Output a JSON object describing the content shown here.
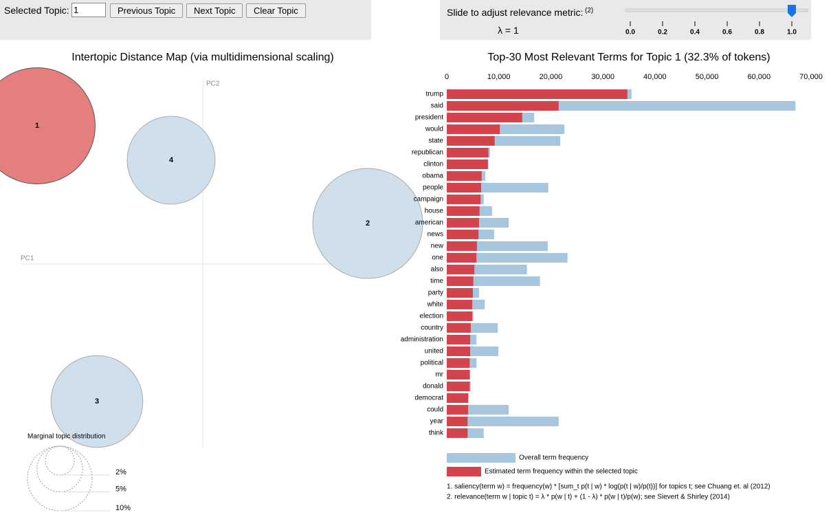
{
  "controls": {
    "selected_label": "Selected Topic:",
    "selected_value": "1",
    "buttons": [
      "Previous Topic",
      "Next Topic",
      "Clear Topic"
    ],
    "slider_label": "Slide to adjust relevance metric:",
    "slider_note": "(2)",
    "lambda_label": "λ = 1",
    "slider_value": 1,
    "slider_lim": [
      0,
      1
    ],
    "slider_ticks": [
      {
        "value": 0,
        "label": "0.0"
      },
      {
        "value": 0.2,
        "label": "0.2"
      },
      {
        "value": 0.4,
        "label": "0.4"
      },
      {
        "value": 0.6,
        "label": "0.6"
      },
      {
        "value": 0.8,
        "label": "0.8"
      },
      {
        "value": 1,
        "label": "1.0"
      }
    ]
  },
  "chart_data": [
    {
      "type": "bubble",
      "title": "Intertopic Distance Map (via multidimensional scaling)",
      "xlabel": "PC1",
      "ylabel": "PC2",
      "xlim": [
        -0.295,
        0.265
      ],
      "ylim": [
        -0.266,
        0.284
      ],
      "labels": [
        "1",
        "2",
        "3",
        "4"
      ],
      "x": [
        -0.241,
        0.24,
        -0.154,
        -0.046
      ],
      "y": [
        0.201,
        0.059,
        -0.2,
        0.151
      ],
      "sizes": [
        32.3,
        29,
        20.2,
        18.5
      ],
      "colors": [
        "#e47f7d",
        "#cfe0ec",
        "#cfe0ec",
        "#cfe0ec"
      ],
      "size_legend": {
        "title": "Marginal topic distribution",
        "values": [
          2,
          5,
          10
        ],
        "value_labels": [
          "2%",
          "5%",
          "10%"
        ]
      }
    },
    {
      "type": "barh",
      "title": "Top-30 Most Relevant Terms for Topic 1 (32.3% of tokens)",
      "categories": [
        "trump",
        "said",
        "president",
        "would",
        "state",
        "republican",
        "clinton",
        "obama",
        "people",
        "campaign",
        "house",
        "american",
        "news",
        "new",
        "one",
        "also",
        "time",
        "party",
        "white",
        "election",
        "country",
        "administration",
        "united",
        "political",
        "mr",
        "donald",
        "democrat",
        "could",
        "year",
        "think"
      ],
      "series": [
        {
          "name": "Overall term frequency",
          "color": "#a6c6df",
          "values": [
            35500,
            67000,
            16800,
            22600,
            21800,
            8300,
            8000,
            7400,
            19500,
            7100,
            8700,
            11900,
            9100,
            19400,
            23200,
            15400,
            17900,
            6200,
            7300,
            5100,
            9800,
            5700,
            9900,
            5700,
            4500,
            4600,
            4200,
            11900,
            21500,
            7100
          ]
        },
        {
          "name": "Estimated term frequency within the selected topic",
          "color": "#d3434c",
          "values": [
            34700,
            21500,
            14500,
            10200,
            9200,
            8000,
            7900,
            6700,
            6600,
            6500,
            6300,
            6200,
            6100,
            5800,
            5700,
            5300,
            5100,
            5000,
            4900,
            4900,
            4600,
            4500,
            4500,
            4400,
            4400,
            4400,
            4100,
            4100,
            4000,
            4000
          ]
        }
      ],
      "xlim": [
        0,
        70000
      ],
      "xticks": [
        0,
        {
          "value": 10000,
          "label": "10,000"
        },
        {
          "value": 20000,
          "label": "20,000"
        },
        {
          "value": 30000,
          "label": "30,000"
        },
        {
          "value": 40000,
          "label": "40,000"
        },
        {
          "value": 50000,
          "label": "50,000"
        },
        {
          "value": 60000,
          "label": "60,000"
        },
        {
          "value": 70000,
          "label": "70,000"
        }
      ],
      "footnotes": [
        "1. saliency(term w) = frequency(w) * [sum_t p(t | w) * log(p(t | w)/p(t))] for topics t; see Chuang et. al (2012)",
        "2. relevance(term w | topic t) = λ * p(w | t) + (1 - λ) * p(w | t)/p(w); see Sievert & Shirley (2014)"
      ]
    }
  ]
}
